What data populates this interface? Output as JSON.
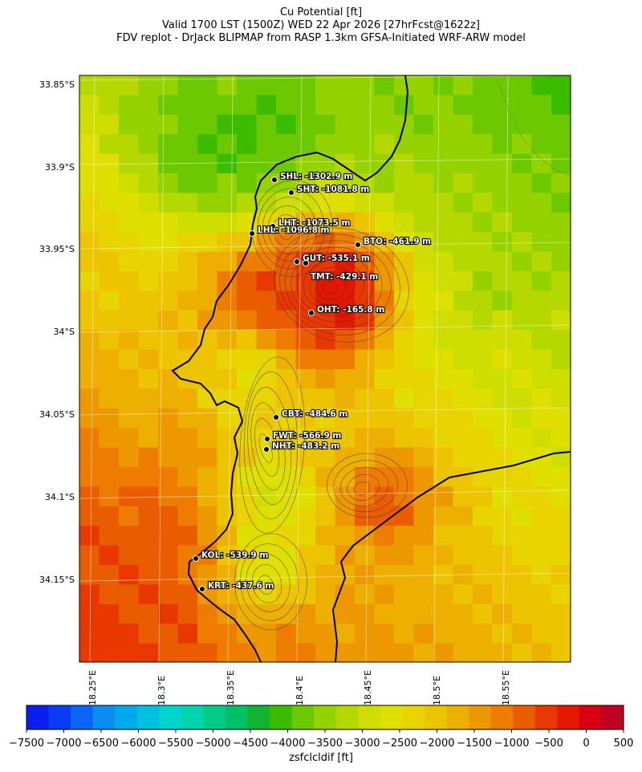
{
  "title": {
    "line1": "Cu Potential [ft]",
    "line2": "Valid 1700 LST (1500Z) WED 22 Apr 2026 [27hrFcst@1622z]",
    "line3": "FDV replot - DrJack BLIPMAP from RASP 1.3km GFSA-Initiated WRF-ARW model"
  },
  "map": {
    "lat_labels": [
      "33.85°S",
      "33.9°S",
      "33.95°S",
      "34°S",
      "34.05°S",
      "34.1°S",
      "34.15°S"
    ],
    "lon_labels": [
      "18.25°E",
      "18.3°E",
      "18.35°E",
      "18.4°E",
      "18.45°E",
      "18.5°E",
      "18.55°E"
    ],
    "stations": [
      {
        "code": "SHL",
        "label": "SHL: -1302.9 m"
      },
      {
        "code": "SHT",
        "label": "SHT: -1081.8 m"
      },
      {
        "code": "LHT",
        "label": "LHT: -1073.5 m"
      },
      {
        "code": "LHL",
        "label": "LHL: -1096.8 m"
      },
      {
        "code": "BTO",
        "label": "BTO: -461.9 m"
      },
      {
        "code": "GUT",
        "label": "GUT: -535.1 m"
      },
      {
        "code": "TMT",
        "label": "TMT: -429.1 m"
      },
      {
        "code": "OHT",
        "label": "OHT: -165.8 m"
      },
      {
        "code": "CBT",
        "label": "CBT: -484.6 m"
      },
      {
        "code": "FWT",
        "label": "FWT: -566.9 m"
      },
      {
        "code": "NHT",
        "label": "NHT: -483.2 m"
      },
      {
        "code": "KOL",
        "label": "KOL: -539.9 m"
      },
      {
        "code": "KRT",
        "label": "KRT: -437.6 m"
      }
    ]
  },
  "colorbar": {
    "label": "zsfclcldif [ft]",
    "ticks": [
      "−7500",
      "−7000",
      "−6500",
      "−6000",
      "−5500",
      "−5000",
      "−4500",
      "−4000",
      "−3500",
      "−3000",
      "−2500",
      "−2000",
      "−1500",
      "−1000",
      "−500",
      "0",
      "500"
    ],
    "colors": [
      "#0a1ef0",
      "#0a3cf5",
      "#0a64f5",
      "#0a8cf0",
      "#00a8ec",
      "#00c0e0",
      "#00d4cc",
      "#00d4ac",
      "#00cc88",
      "#00c064",
      "#10b430",
      "#3cbc00",
      "#6cc800",
      "#94d200",
      "#b4d800",
      "#cede00",
      "#e0e000",
      "#e8d400",
      "#ecc400",
      "#eeb000",
      "#ee9800",
      "#ee7c00",
      "#ea5c00",
      "#e83800",
      "#e41800",
      "#d80010",
      "#c00020"
    ]
  }
}
